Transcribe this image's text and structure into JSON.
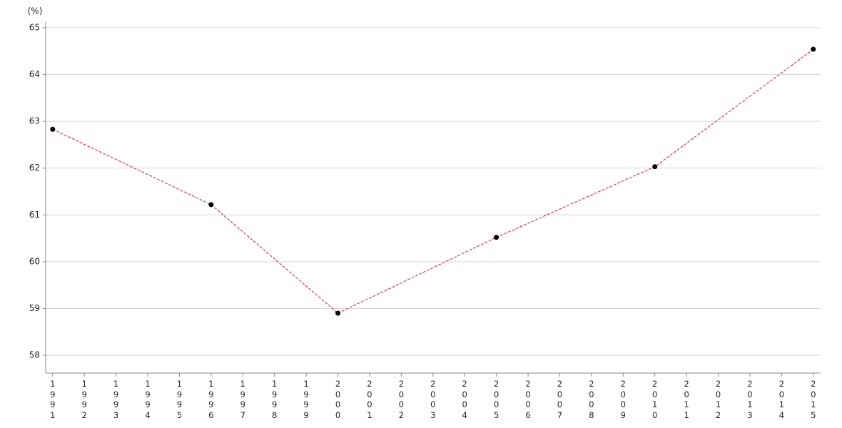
{
  "chart_data": {
    "type": "line",
    "y_label": "(%)",
    "x": [
      1991,
      1996,
      2000,
      2005,
      2010,
      2015
    ],
    "series": [
      {
        "color": "#e0103a",
        "marker_color": "#000000",
        "values": [
          62.83,
          61.22,
          58.9,
          60.52,
          62.03,
          64.54
        ]
      }
    ],
    "xlim": [
      1990.78,
      2015.23
    ],
    "xticks": [
      1991,
      1992,
      1993,
      1994,
      1995,
      1996,
      1997,
      1998,
      1999,
      2000,
      2001,
      2002,
      2003,
      2004,
      2005,
      2006,
      2007,
      2008,
      2009,
      2010,
      2011,
      2012,
      2013,
      2014,
      2015
    ],
    "ylim": [
      57.62,
      65.12
    ],
    "yticks": [
      58,
      59,
      60,
      61,
      62,
      63,
      64,
      65
    ],
    "grid": true
  }
}
